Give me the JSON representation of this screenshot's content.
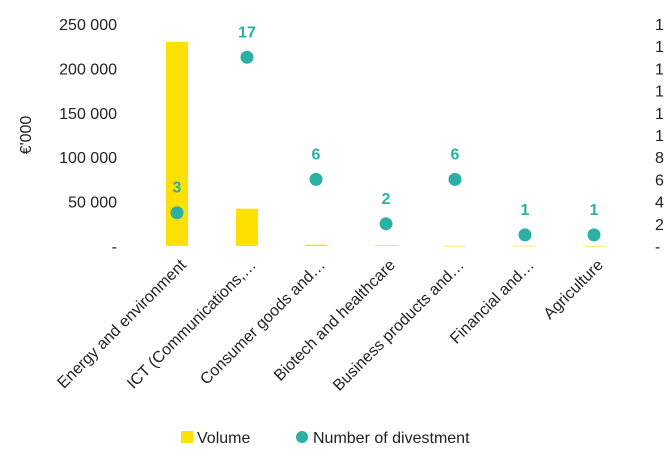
{
  "chart_data": {
    "type": "bar",
    "categories": [
      "Energy and environment",
      "ICT (Communications,…",
      "Consumer goods and…",
      "Biotech and healthcare",
      "Business products and…",
      "Financial and…",
      "Agriculture"
    ],
    "ylabel": "€'000",
    "ylim": [
      0,
      250000
    ],
    "y_ticks": [
      "-",
      "50 000",
      "100 000",
      "150 000",
      "200 000",
      "250 000"
    ],
    "y2_ticks": [
      "-",
      "2",
      "4",
      "6",
      "8",
      "1",
      "1",
      "1",
      "1",
      "1",
      "1"
    ],
    "y2lim": [
      0,
      20
    ],
    "legend_position": "bottom",
    "series": [
      {
        "name": "Volume",
        "type": "bar",
        "axis": "left",
        "color": "#FFE000",
        "values": [
          230000,
          42000,
          1500,
          800,
          200,
          300,
          100
        ]
      },
      {
        "name": "Number of divestment",
        "type": "scatter",
        "axis": "right",
        "color": "#2AB0A4",
        "values": [
          3,
          17,
          6,
          2,
          6,
          1,
          1
        ],
        "data_labels": [
          "3",
          "17",
          "6",
          "2",
          "6",
          "1",
          "1"
        ]
      }
    ]
  }
}
